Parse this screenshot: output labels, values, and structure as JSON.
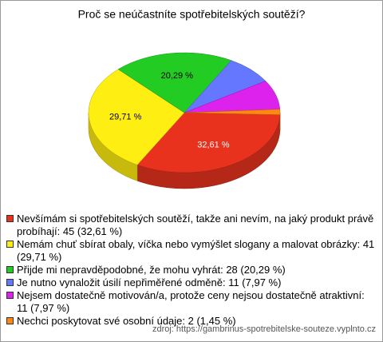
{
  "chart_data": {
    "type": "pie",
    "title": "Proč se neúčastníte spotřebitelských soutěží?",
    "categories": [
      "Nevšímám si spotřebitelských soutěží, takže ani nevím, na jaký produkt právě probíhají: 45 (32,61 %)",
      "Nemám chuť sbírat obaly, víčka nebo vymýšlet slogany a malovat obrázky: 41 (29,71 %)",
      "Přijde mi nepravděpodobné, že mohu vyhrát: 28 (20,29 %)",
      "Je nutno vynaložit úsilí nepřiměřené odměně: 11 (7,97 %)",
      "Nejsem dostatečně motivován/a, protože ceny nejsou dostatečně atraktivní: 11 (7,97 %)",
      "Nechci poskytovat své osobní údaje: 2 (1,45 %)"
    ],
    "values": [
      32.61,
      29.71,
      20.29,
      7.97,
      7.97,
      1.45
    ],
    "value_labels": [
      "32,61 %",
      "29,71 %",
      "20,29 %",
      null,
      null,
      null
    ],
    "colors": [
      "#e8321e",
      "#ffee11",
      "#22cc22",
      "#6677ff",
      "#dd22ee",
      "#ff8811"
    ],
    "source": "zdroj: https://gambrinus-spotrebitelske-souteze.vyplnto.cz"
  }
}
